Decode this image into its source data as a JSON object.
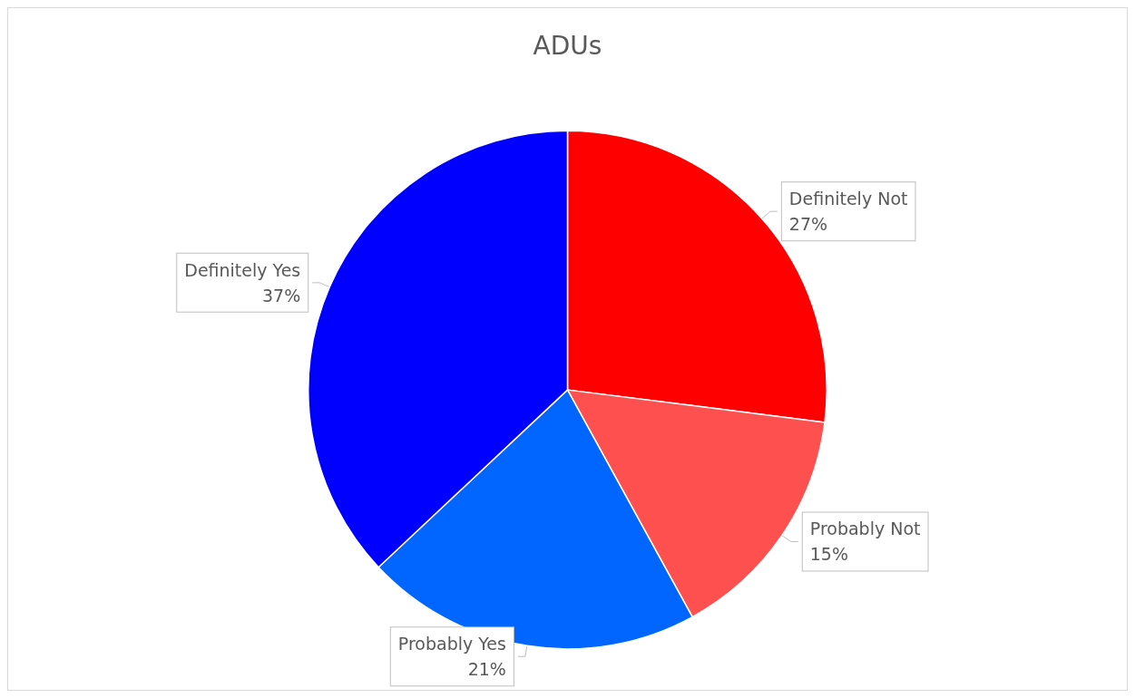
{
  "chart_data": {
    "type": "pie",
    "title": "ADUs",
    "categories": [
      "Definitely Not",
      "Probably Not",
      "Probably Yes",
      "Definitely Yes"
    ],
    "values": [
      27,
      15,
      21,
      37
    ],
    "value_labels": [
      "27%",
      "15%",
      "21%",
      "37%"
    ],
    "colors": [
      "#ff0000",
      "#ff5050",
      "#0066ff",
      "#0000ff"
    ],
    "legend": false
  }
}
